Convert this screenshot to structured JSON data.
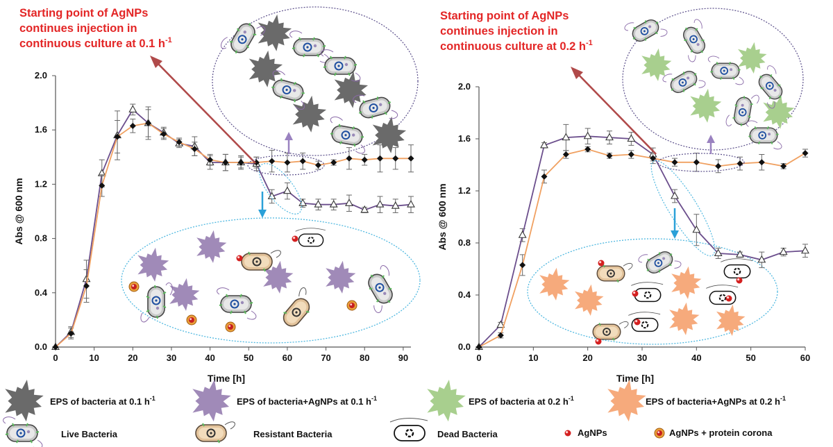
{
  "chart_data": [
    {
      "type": "line",
      "annotation": {
        "line1": "Starting point of AgNPs",
        "line2": "continues injection in",
        "line3": "continuous culture at 0.1 h",
        "sup": "-1"
      },
      "xlabel": "Time [h]",
      "ylabel": "Abs @ 600 nm",
      "xlim": [
        0,
        92
      ],
      "ylim": [
        0,
        2.0
      ],
      "x_ticks": [
        0,
        10,
        20,
        30,
        40,
        50,
        60,
        70,
        80,
        90
      ],
      "y_ticks": [
        0.0,
        0.4,
        0.8,
        1.2,
        1.6,
        2.0
      ],
      "y_tick_labels": [
        "0.0",
        "0.4",
        "0.8",
        "1.2",
        "1.6",
        "2.0"
      ],
      "x_tick_labels": [
        "0",
        "10",
        "20",
        "30",
        "40",
        "50",
        "60",
        "70",
        "80",
        "90"
      ],
      "series": [
        {
          "marker": "filled-diamond",
          "color": "#f0a060",
          "x": [
            0,
            4,
            8,
            12,
            16,
            20,
            24,
            28,
            32,
            36,
            40,
            44,
            48,
            52,
            56,
            60,
            64,
            68,
            72,
            76,
            80,
            84,
            88,
            92
          ],
          "y": [
            0.0,
            0.1,
            0.45,
            1.19,
            1.55,
            1.63,
            1.65,
            1.57,
            1.51,
            1.46,
            1.38,
            1.36,
            1.36,
            1.36,
            1.37,
            1.36,
            1.37,
            1.34,
            1.36,
            1.39,
            1.38,
            1.39,
            1.39,
            1.39
          ],
          "err": [
            0,
            0.04,
            0.12,
            0.08,
            0.12,
            0.05,
            0.1,
            0.04,
            0.03,
            0.05,
            0.04,
            0.06,
            0.05,
            0.04,
            0.08,
            0.07,
            0.06,
            0.03,
            0.02,
            0.08,
            0.04,
            0.1,
            0.08,
            0.1
          ]
        },
        {
          "marker": "open-triangle",
          "color": "#6b4e8c",
          "x": [
            0,
            4,
            8,
            12,
            16,
            20,
            24,
            28,
            32,
            36,
            40,
            44,
            48,
            52,
            56,
            60,
            64,
            68,
            72,
            76,
            80,
            84,
            88,
            92
          ],
          "y": [
            0.0,
            0.11,
            0.5,
            1.28,
            1.56,
            1.75,
            1.65,
            1.58,
            1.5,
            1.48,
            1.36,
            1.36,
            1.36,
            1.35,
            1.11,
            1.15,
            1.06,
            1.05,
            1.05,
            1.06,
            1.01,
            1.05,
            1.04,
            1.05
          ],
          "err": [
            0,
            0.04,
            0.14,
            0.1,
            0.18,
            0.04,
            0.12,
            0.04,
            0.03,
            0.07,
            0.05,
            0.06,
            0.04,
            0.05,
            0.05,
            0.06,
            0.03,
            0.04,
            0.04,
            0.06,
            0.02,
            0.06,
            0.05,
            0.06
          ]
        }
      ]
    },
    {
      "type": "line",
      "annotation": {
        "line1": "Starting point of AgNPs",
        "line2": "continues injection in",
        "line3": "continuous culture at 0.2 h",
        "sup": "-1"
      },
      "xlabel": "Time [h]",
      "ylabel": "Abs @ 600 nm",
      "xlim": [
        0,
        60
      ],
      "ylim": [
        0,
        2.0
      ],
      "x_ticks": [
        0,
        10,
        20,
        30,
        40,
        50,
        60
      ],
      "y_ticks": [
        0.0,
        0.4,
        0.8,
        1.2,
        1.6,
        2.0
      ],
      "y_tick_labels": [
        "0.0",
        "0.4",
        "0.8",
        "1.2",
        "1.6",
        "2.0"
      ],
      "x_tick_labels": [
        "0",
        "10",
        "20",
        "30",
        "40",
        "50",
        "60"
      ],
      "series": [
        {
          "marker": "filled-diamond",
          "color": "#f0a060",
          "x": [
            0,
            4,
            8,
            12,
            16,
            20,
            24,
            28,
            32,
            36,
            40,
            44,
            48,
            52,
            56,
            60
          ],
          "y": [
            0.0,
            0.09,
            0.63,
            1.31,
            1.48,
            1.52,
            1.47,
            1.48,
            1.45,
            1.42,
            1.42,
            1.39,
            1.41,
            1.42,
            1.39,
            1.49
          ],
          "err": [
            0,
            0.02,
            0.08,
            0.05,
            0.03,
            0.02,
            0.02,
            0.03,
            0.04,
            0.03,
            0.07,
            0.05,
            0.05,
            0.06,
            0.02,
            0.03
          ]
        },
        {
          "marker": "open-triangle",
          "color": "#6b4e8c",
          "x": [
            0,
            4,
            8,
            12,
            16,
            20,
            24,
            28,
            32,
            36,
            40,
            44,
            48,
            52,
            56,
            60
          ],
          "y": [
            0.0,
            0.17,
            0.86,
            1.55,
            1.61,
            1.62,
            1.61,
            1.6,
            1.48,
            1.16,
            0.9,
            0.72,
            0.71,
            0.67,
            0.73,
            0.74
          ],
          "err": [
            0,
            0.02,
            0.05,
            0.02,
            0.1,
            0.06,
            0.05,
            0.05,
            0.05,
            0.05,
            0.12,
            0.04,
            0.02,
            0.06,
            0.03,
            0.05
          ]
        }
      ]
    }
  ],
  "legend": {
    "eps_01": {
      "label": "EPS of bacteria at 0.1 h",
      "sup": "-1",
      "color": "#6a6a6a"
    },
    "eps_ag_01": {
      "label": "EPS of bacteria+AgNPs at 0.1 h",
      "sup": "-1",
      "color": "#a08ab8"
    },
    "eps_02": {
      "label": "EPS of bacteria at 0.2 h",
      "sup": "-1",
      "color": "#a8cf8e"
    },
    "eps_ag_02": {
      "label": "EPS of bacteria+AgNPs at 0.2 h",
      "sup": "-1",
      "color": "#f6aa7c"
    },
    "live": "Live Bacteria",
    "resistant": "Resistant Bacteria",
    "dead": "Dead Bacteria",
    "agnps": "AgNPs",
    "corona": "AgNPs + protein corona"
  },
  "icons": {
    "live": "live-bacterium-icon",
    "resistant": "resistant-bacterium-icon",
    "dead": "dead-bacterium-icon",
    "agnp": "agnp-particle-icon",
    "corona": "agnp-protein-corona-icon",
    "eps": "eps-starburst-icon"
  }
}
